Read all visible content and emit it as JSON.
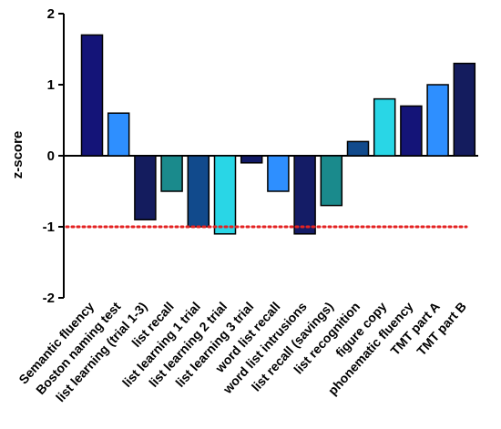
{
  "chart_data": {
    "type": "bar",
    "title": "",
    "xlabel": "",
    "ylabel": "z-score",
    "ylim": [
      -2,
      2
    ],
    "yticks": [
      "-2",
      "-1",
      "0",
      "1",
      "2"
    ],
    "grid": false,
    "legend": "none",
    "reference_line": {
      "value": -1,
      "style": "dotted",
      "color": "#e32222"
    },
    "categories": [
      "Semantic fluency",
      "Boston naming test",
      "list learning (trial 1-3)",
      "list recall",
      "list learning 1 trial",
      "list learning 2 trial",
      "list learning 3 trial",
      "word list recall",
      "word list intrusions",
      "list recall (savings)",
      "list recognition",
      "figure copy",
      "phonematic fluency",
      "TMT part A",
      "TMT part B"
    ],
    "values": [
      1.7,
      0.6,
      -0.9,
      -0.5,
      -1.0,
      -1.1,
      -0.1,
      -0.5,
      -1.1,
      -0.7,
      0.2,
      0.8,
      0.7,
      1.0,
      1.3
    ],
    "colors": [
      "#141478",
      "#2e8fff",
      "#141c5e",
      "#1a8a8c",
      "#114a8c",
      "#29d6e6",
      "#111a66",
      "#2e8fff",
      "#141c66",
      "#1a8a8c",
      "#114a8c",
      "#29d6e6",
      "#141478",
      "#2e8fff",
      "#141c5e"
    ]
  }
}
